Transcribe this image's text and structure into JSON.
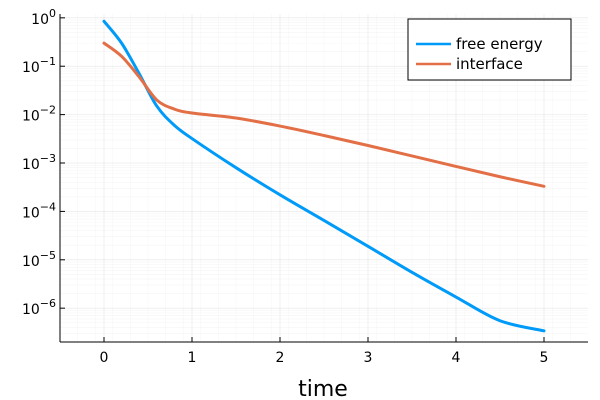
{
  "chart_data": {
    "type": "line",
    "title": "",
    "xlabel": "time",
    "ylabel": "",
    "xlim": [
      -0.5,
      5.5
    ],
    "ylim": [
      2e-07,
      1.2
    ],
    "yscale": "log",
    "grid": true,
    "legend_position": "top-right",
    "x_ticks": [
      0,
      1,
      2,
      3,
      4,
      5
    ],
    "x_tick_labels": [
      "0",
      "1",
      "2",
      "3",
      "4",
      "5"
    ],
    "y_ticks": [
      1e-06,
      1e-05,
      0.0001,
      0.001,
      0.01,
      0.1,
      1
    ],
    "y_tick_labels": [
      {
        "base": "10",
        "exp": "−6"
      },
      {
        "base": "10",
        "exp": "−5"
      },
      {
        "base": "10",
        "exp": "−4"
      },
      {
        "base": "10",
        "exp": "−3"
      },
      {
        "base": "10",
        "exp": "−2"
      },
      {
        "base": "10",
        "exp": "−1"
      },
      {
        "base": "10",
        "exp": "0"
      }
    ],
    "series": [
      {
        "name": "free energy",
        "color": "#009af9",
        "x": [
          0,
          0.2,
          0.4,
          0.6,
          0.8,
          1.0,
          1.5,
          2.0,
          2.5,
          3.0,
          3.5,
          4.0,
          4.5,
          5.0
        ],
        "y": [
          0.85,
          0.3,
          0.07,
          0.015,
          0.006,
          0.0032,
          0.0008,
          0.00022,
          6.5e-05,
          1.9e-05,
          5.5e-06,
          1.7e-06,
          5.5e-07,
          3.4e-07
        ]
      },
      {
        "name": "interface",
        "color": "#e26f46",
        "x": [
          0,
          0.2,
          0.4,
          0.6,
          0.8,
          1.0,
          1.5,
          2.0,
          2.5,
          3.0,
          3.5,
          4.0,
          4.5,
          5.0
        ],
        "y": [
          0.3,
          0.16,
          0.06,
          0.02,
          0.013,
          0.0108,
          0.0085,
          0.0058,
          0.0037,
          0.0023,
          0.0014,
          0.00085,
          0.00052,
          0.00033
        ]
      }
    ]
  }
}
